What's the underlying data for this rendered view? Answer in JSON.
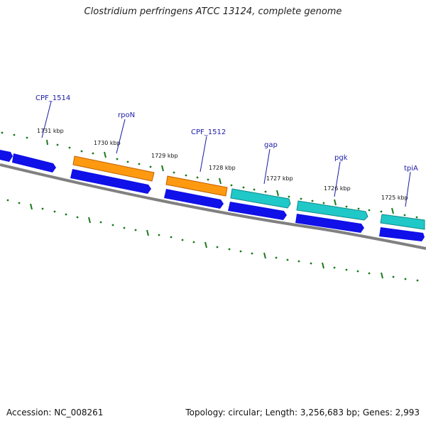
{
  "title": "Clostridium perfringens ATCC 13124, complete genome",
  "footer": {
    "accession": "Accession: NC_008261",
    "summary": "Topology: circular; Length: 3,256,683 bp; Genes: 2,993"
  },
  "colors": {
    "backbone": "#808080",
    "cds_blue": "#1010e8",
    "cds_blue_light": "#3a3aff",
    "cds_orange": "#ff9a10",
    "cds_orange_dark": "#c06000",
    "cds_cyan": "#20c8c8",
    "cds_cyan_dark": "#108a8a",
    "tick_green": "#1a7a1a",
    "label_blue": "#1a1aa6"
  },
  "gene_labels": [
    "CPF_1514",
    "rpoN",
    "CPF_1512",
    "gap",
    "pgk",
    "tpiA"
  ],
  "tick_labels": [
    "1731 kbp",
    "1730 kbp",
    "1729 kbp",
    "1728 kbp",
    "1727 kbp",
    "1726 kbp",
    "1725 kbp"
  ]
}
